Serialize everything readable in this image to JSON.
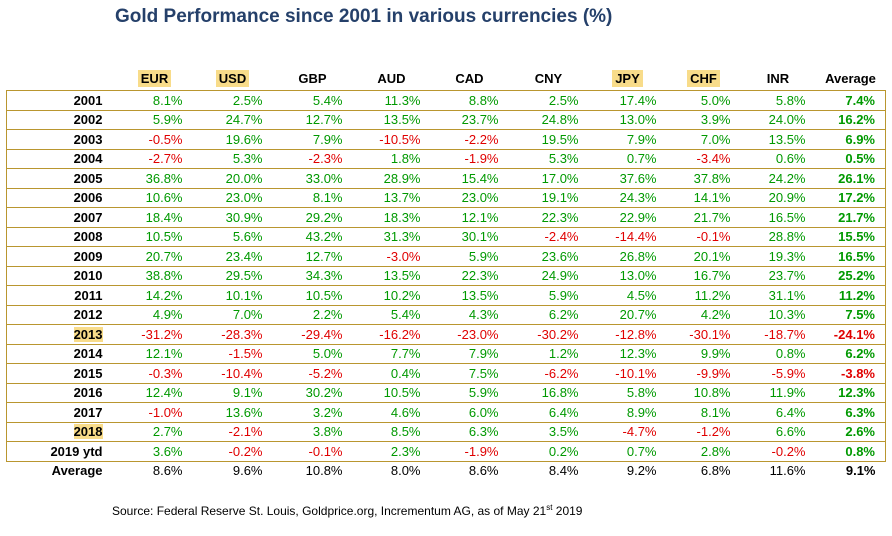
{
  "chart_data": {
    "type": "table",
    "title": "Gold Performance since 2001 in various currencies (%)",
    "columns": [
      "EUR",
      "USD",
      "GBP",
      "AUD",
      "CAD",
      "CNY",
      "JPY",
      "CHF",
      "INR",
      "Average"
    ],
    "highlighted_columns": [
      "EUR",
      "USD",
      "JPY",
      "CHF"
    ],
    "highlighted_rows": [
      "2013",
      "2018"
    ],
    "rows": [
      {
        "label": "2001",
        "values": [
          "8.1%",
          "2.5%",
          "5.4%",
          "11.3%",
          "8.8%",
          "2.5%",
          "17.4%",
          "5.0%",
          "5.8%",
          "7.4%"
        ]
      },
      {
        "label": "2002",
        "values": [
          "5.9%",
          "24.7%",
          "12.7%",
          "13.5%",
          "23.7%",
          "24.8%",
          "13.0%",
          "3.9%",
          "24.0%",
          "16.2%"
        ]
      },
      {
        "label": "2003",
        "values": [
          "-0.5%",
          "19.6%",
          "7.9%",
          "-10.5%",
          "-2.2%",
          "19.5%",
          "7.9%",
          "7.0%",
          "13.5%",
          "6.9%"
        ]
      },
      {
        "label": "2004",
        "values": [
          "-2.7%",
          "5.3%",
          "-2.3%",
          "1.8%",
          "-1.9%",
          "5.3%",
          "0.7%",
          "-3.4%",
          "0.6%",
          "0.5%"
        ]
      },
      {
        "label": "2005",
        "values": [
          "36.8%",
          "20.0%",
          "33.0%",
          "28.9%",
          "15.4%",
          "17.0%",
          "37.6%",
          "37.8%",
          "24.2%",
          "26.1%"
        ]
      },
      {
        "label": "2006",
        "values": [
          "10.6%",
          "23.0%",
          "8.1%",
          "13.7%",
          "23.0%",
          "19.1%",
          "24.3%",
          "14.1%",
          "20.9%",
          "17.2%"
        ]
      },
      {
        "label": "2007",
        "values": [
          "18.4%",
          "30.9%",
          "29.2%",
          "18.3%",
          "12.1%",
          "22.3%",
          "22.9%",
          "21.7%",
          "16.5%",
          "21.7%"
        ]
      },
      {
        "label": "2008",
        "values": [
          "10.5%",
          "5.6%",
          "43.2%",
          "31.3%",
          "30.1%",
          "-2.4%",
          "-14.4%",
          "-0.1%",
          "28.8%",
          "15.5%"
        ]
      },
      {
        "label": "2009",
        "values": [
          "20.7%",
          "23.4%",
          "12.7%",
          "-3.0%",
          "5.9%",
          "23.6%",
          "26.8%",
          "20.1%",
          "19.3%",
          "16.5%"
        ]
      },
      {
        "label": "2010",
        "values": [
          "38.8%",
          "29.5%",
          "34.3%",
          "13.5%",
          "22.3%",
          "24.9%",
          "13.0%",
          "16.7%",
          "23.7%",
          "25.2%"
        ]
      },
      {
        "label": "2011",
        "values": [
          "14.2%",
          "10.1%",
          "10.5%",
          "10.2%",
          "13.5%",
          "5.9%",
          "4.5%",
          "11.2%",
          "31.1%",
          "11.2%"
        ]
      },
      {
        "label": "2012",
        "values": [
          "4.9%",
          "7.0%",
          "2.2%",
          "5.4%",
          "4.3%",
          "6.2%",
          "20.7%",
          "4.2%",
          "10.3%",
          "7.5%"
        ]
      },
      {
        "label": "2013",
        "values": [
          "-31.2%",
          "-28.3%",
          "-29.4%",
          "-16.2%",
          "-23.0%",
          "-30.2%",
          "-12.8%",
          "-30.1%",
          "-18.7%",
          "-24.1%"
        ]
      },
      {
        "label": "2014",
        "values": [
          "12.1%",
          "-1.5%",
          "5.0%",
          "7.7%",
          "7.9%",
          "1.2%",
          "12.3%",
          "9.9%",
          "0.8%",
          "6.2%"
        ]
      },
      {
        "label": "2015",
        "values": [
          "-0.3%",
          "-10.4%",
          "-5.2%",
          "0.4%",
          "7.5%",
          "-6.2%",
          "-10.1%",
          "-9.9%",
          "-5.9%",
          "-3.8%"
        ]
      },
      {
        "label": "2016",
        "values": [
          "12.4%",
          "9.1%",
          "30.2%",
          "10.5%",
          "5.9%",
          "16.8%",
          "5.8%",
          "10.8%",
          "11.9%",
          "12.3%"
        ]
      },
      {
        "label": "2017",
        "values": [
          "-1.0%",
          "13.6%",
          "3.2%",
          "4.6%",
          "6.0%",
          "6.4%",
          "8.9%",
          "8.1%",
          "6.4%",
          "6.3%"
        ]
      },
      {
        "label": "2018",
        "values": [
          "2.7%",
          "-2.1%",
          "3.8%",
          "8.5%",
          "6.3%",
          "3.5%",
          "-4.7%",
          "-1.2%",
          "6.6%",
          "2.6%"
        ]
      },
      {
        "label": "2019 ytd",
        "values": [
          "3.6%",
          "-0.2%",
          "-0.1%",
          "2.3%",
          "-1.9%",
          "0.2%",
          "0.7%",
          "2.8%",
          "-0.2%",
          "0.8%"
        ]
      }
    ],
    "footer_row": {
      "label": "Average",
      "values": [
        "8.6%",
        "9.6%",
        "10.8%",
        "8.0%",
        "8.6%",
        "8.4%",
        "9.2%",
        "6.8%",
        "11.6%",
        "9.1%"
      ]
    },
    "source": {
      "text": "Source: Federal Reserve St. Louis, Goldprice.org, Incrementum AG, as of May 21",
      "superscript": "st",
      "suffix": " 2019"
    },
    "colors": {
      "positive": "#009900",
      "negative": "#e00000",
      "highlight": "#f8dc8a",
      "border": "#b9962f",
      "title": "#25406a"
    }
  }
}
